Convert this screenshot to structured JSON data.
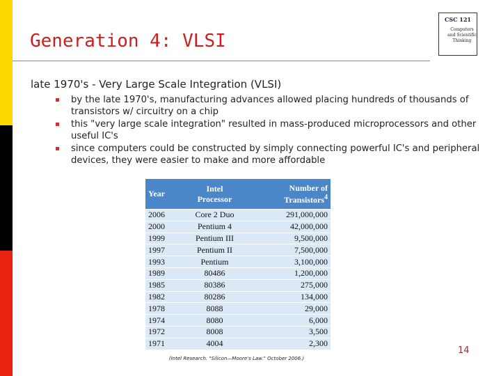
{
  "title": "Generation 4: VLSI",
  "logo": {
    "line1": "CSC 121",
    "line2": "Computers and Scientific Thinking"
  },
  "intro": "late 1970's - Very Large Scale Integration (VLSI)",
  "bullets": [
    "by the late 1970's, manufacturing advances allowed placing hundreds of thousands of transistors w/ circuitry on a chip",
    "this \"very large scale integration\" resulted in mass-produced microprocessors and other useful IC's",
    "since computers could be constructed by simply connecting powerful IC's and peripheral devices, they were easier to make and more affordable"
  ],
  "table": {
    "header": [
      "Year",
      "Intel Processor",
      "Number of Transistors"
    ],
    "header_note": "4",
    "rows": [
      [
        "2006",
        "Core 2 Duo",
        "291,000,000"
      ],
      [
        "2000",
        "Pentium 4",
        "42,000,000"
      ],
      [
        "1999",
        "Pentium III",
        "9,500,000"
      ],
      [
        "1997",
        "Pentium II",
        "7,500,000"
      ],
      [
        "1993",
        "Pentium",
        "3,100,000"
      ],
      [
        "1989",
        "80486",
        "1,200,000"
      ],
      [
        "1985",
        "80386",
        "275,000"
      ],
      [
        "1982",
        "80286",
        "134,000"
      ],
      [
        "1978",
        "8088",
        "29,000"
      ],
      [
        "1974",
        "8080",
        "6,000"
      ],
      [
        "1972",
        "8008",
        "3,500"
      ],
      [
        "1971",
        "4004",
        "2,300"
      ]
    ]
  },
  "caption": "(Intel Research. \"Silicon—Moore's Law.\" October 2006.)",
  "page_number": "14"
}
